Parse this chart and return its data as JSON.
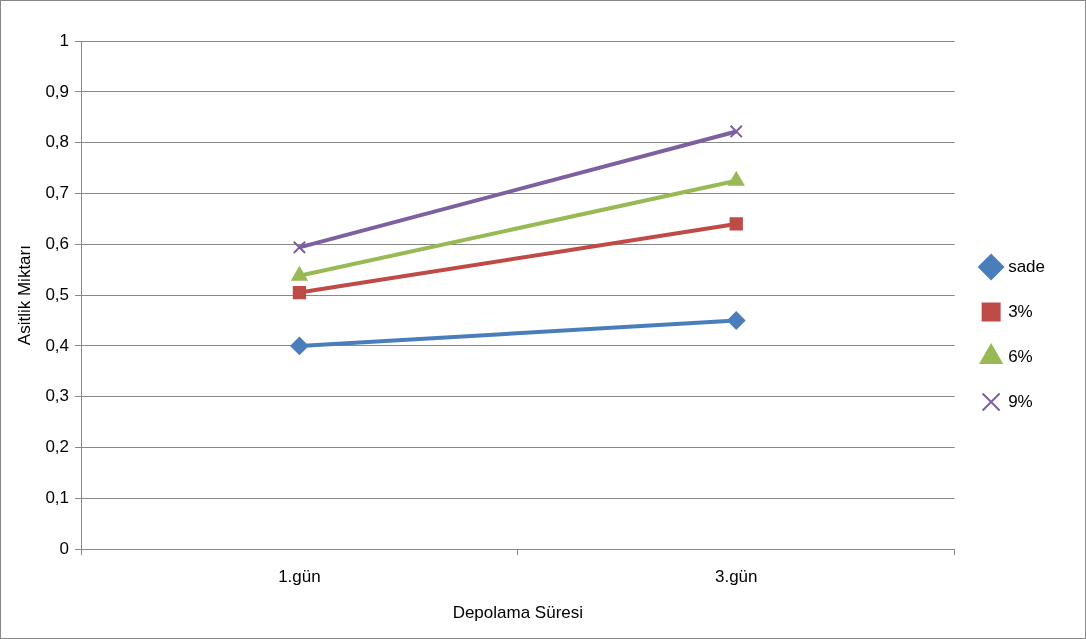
{
  "chart_data": {
    "type": "line",
    "xlabel": "Depolama Süresi",
    "ylabel": "Asitlik Miktarı",
    "categories": [
      "1.gün",
      "3.gün"
    ],
    "series": [
      {
        "name": "sade",
        "color": "#4a7ebb",
        "marker": "diamond",
        "values": [
          0.4,
          0.45
        ]
      },
      {
        "name": "3%",
        "color": "#be4b48",
        "marker": "square",
        "values": [
          0.505,
          0.64
        ]
      },
      {
        "name": "6%",
        "color": "#98b954",
        "marker": "triangle",
        "values": [
          0.538,
          0.725
        ]
      },
      {
        "name": "9%",
        "color": "#7d60a0",
        "marker": "cross",
        "values": [
          0.594,
          0.822
        ]
      }
    ],
    "ylim": [
      0,
      1
    ],
    "yticks": [
      0,
      {
        "value": 0.1,
        "label": "0,1"
      },
      {
        "value": 0.2,
        "label": "0,2"
      },
      {
        "value": 0.3,
        "label": "0,3"
      },
      {
        "value": 0.4,
        "label": "0,4"
      },
      {
        "value": 0.5,
        "label": "0,5"
      },
      {
        "value": 0.6,
        "label": "0,6"
      },
      {
        "value": 0.7,
        "label": "0,7"
      },
      {
        "value": 0.8,
        "label": "0,8"
      },
      {
        "value": 0.9,
        "label": "0,9"
      },
      1
    ],
    "grid": "y",
    "legend": "right"
  }
}
